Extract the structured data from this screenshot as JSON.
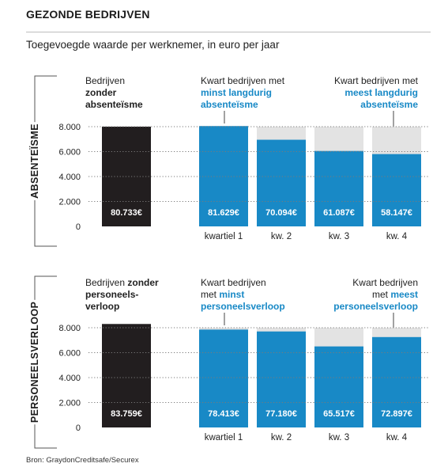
{
  "header": {
    "title": "GEZONDE BEDRIJVEN",
    "subtitle": "Toegevoegde waarde per werknemer, in euro per jaar"
  },
  "source": "Bron: GraydonCreditsafe/Securex",
  "colors": {
    "dark": "#221e1f",
    "blue": "#1889c6",
    "grey": "#e3e3e3",
    "accent_text": "#1889c6"
  },
  "chart_data": [
    {
      "type": "bar",
      "group_label": "ABSENTEÏSME",
      "ylim": [
        0,
        8000
      ],
      "ytick_labels": [
        "0",
        "2.000",
        "4.000",
        "6.000",
        "8.000"
      ],
      "ytick_values": [
        0,
        2000,
        4000,
        6000,
        8000
      ],
      "reference_value": 8000,
      "categories": [
        "",
        "kwartiel 1",
        "kw. 2",
        "kw. 3",
        "kw. 4"
      ],
      "values": [
        8000,
        8050,
        6950,
        6050,
        5800
      ],
      "data_labels": [
        "80.733€",
        "81.629€",
        "70.094€",
        "61.087€",
        "58.147€"
      ],
      "annotations": [
        {
          "lines": [
            [
              "Bedrijven",
              false
            ]
          ],
          "lines2": [
            [
              "zonder",
              true
            ],
            [
              "absenteïsme",
              true
            ]
          ]
        },
        {
          "lines": [
            [
              "Kwart bedrijven met",
              false
            ]
          ],
          "lines2": [
            [
              "minst langdurig",
              true
            ],
            [
              "absenteïsme",
              true
            ]
          ]
        },
        {
          "lines": [
            [
              "Kwart bedrijven met",
              false
            ]
          ],
          "lines2": [
            [
              "meest langdurig",
              true
            ],
            [
              "absenteïsme",
              true
            ]
          ]
        }
      ]
    },
    {
      "type": "bar",
      "group_label": "PERSONEELSVERLOOP",
      "ylim": [
        0,
        8000
      ],
      "ytick_labels": [
        "0",
        "2.000",
        "4.000",
        "6.000",
        "8.000"
      ],
      "ytick_values": [
        0,
        2000,
        4000,
        6000,
        8000
      ],
      "reference_value": 8000,
      "categories": [
        "",
        "kwartiel 1",
        "kw. 2",
        "kw. 3",
        "kw. 4"
      ],
      "values": [
        8300,
        7850,
        7700,
        6500,
        7250
      ],
      "data_labels": [
        "83.759€",
        "78.413€",
        "77.180€",
        "65.517€",
        "72.897€"
      ],
      "annotations": [
        {
          "text": "Bedrijven zonder personeels-verloop"
        },
        {
          "text": "Kwart bedrijven met minst personeelsverloop"
        },
        {
          "text": "Kwart bedrijven met meest personeelsverloop"
        }
      ]
    }
  ],
  "annotation_text": {
    "abs_left_1": "Bedrijven",
    "abs_left_2": "zonder",
    "abs_left_3": "absenteïsme",
    "abs_mid_1": "Kwart bedrijven met",
    "abs_mid_2": "minst langdurig",
    "abs_mid_3": "absenteïsme",
    "abs_right_1": "Kwart bedrijven met",
    "abs_right_2": "meest langdurig",
    "abs_right_3": "absenteïsme",
    "per_left_1a": "Bedrijven ",
    "per_left_1b": "zonder",
    "per_left_2": "personeels-",
    "per_left_3": "verloop",
    "per_mid_1": "Kwart bedrijven",
    "per_mid_2a": "met ",
    "per_mid_2b": "minst",
    "per_mid_3": "personeelsverloop",
    "per_right_1": "Kwart bedrijven",
    "per_right_2a": "met ",
    "per_right_2b": "meest",
    "per_right_3": "personeelsverloop"
  }
}
